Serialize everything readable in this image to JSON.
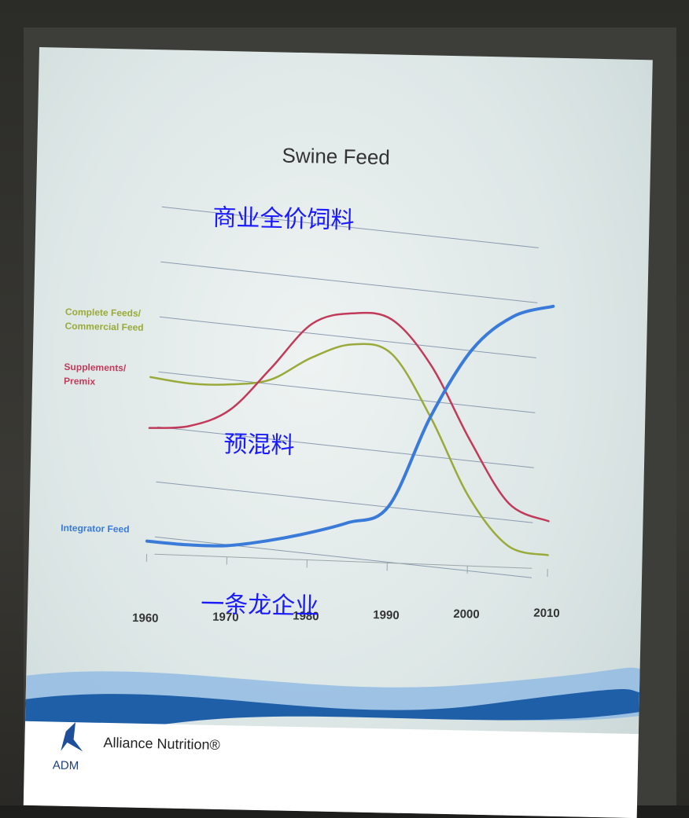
{
  "chart_data": {
    "type": "line",
    "title": "Swine Feed",
    "x": [
      1960,
      1965,
      1970,
      1975,
      1980,
      1985,
      1990,
      1995,
      2000,
      2005,
      2010
    ],
    "xticks": [
      "1960",
      "1970",
      "1980",
      "1990",
      "2000",
      "2010"
    ],
    "ylim": [
      0,
      100
    ],
    "grid": true,
    "series": [
      {
        "name": "Complete Feeds/ Commercial Feed",
        "name_lines": [
          "Complete Feeds/",
          "Commercial Feed"
        ],
        "color": "#9aaa3a",
        "values": [
          62,
          60,
          60,
          62,
          70,
          75,
          72,
          50,
          22,
          5,
          2
        ]
      },
      {
        "name": "Supplements/ Premix",
        "name_lines": [
          "Supplements/",
          "Premix"
        ],
        "color": "#c23a5a",
        "values": [
          44,
          45,
          51,
          66,
          82,
          86,
          84,
          68,
          42,
          20,
          14
        ]
      },
      {
        "name": "Integrator Feed",
        "name_lines": [
          "Integrator Feed"
        ],
        "color": "#3a7ad8",
        "values": [
          4,
          3,
          3,
          5,
          8,
          12,
          18,
          50,
          74,
          86,
          90
        ]
      }
    ],
    "annotations": [
      "商业全价饲料",
      "预混料",
      "一条龙企业"
    ]
  },
  "footer": {
    "brand": "Alliance Nutrition®",
    "logo_text": "ADM"
  },
  "colors": {
    "wave_dark": "#1f5fa8",
    "wave_light": "#8fb9e3"
  }
}
